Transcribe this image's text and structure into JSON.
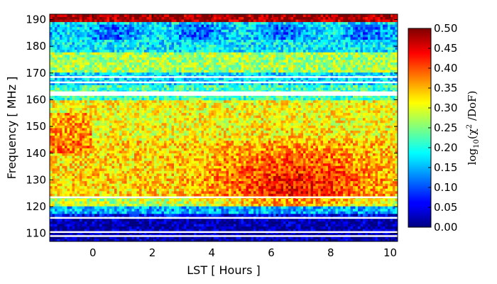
{
  "chart_data": {
    "type": "heatmap",
    "title": "",
    "xlabel": "LST [ Hours ]",
    "ylabel": "Frequency [ MHz ]",
    "xlim": [
      -1.45,
      10.25
    ],
    "ylim": [
      107,
      192
    ],
    "x_ticks": [
      "0",
      "2",
      "4",
      "6",
      "8",
      "10"
    ],
    "x_tick_values": [
      0,
      2,
      4,
      6,
      8,
      10
    ],
    "y_ticks": [
      "110",
      "120",
      "130",
      "140",
      "150",
      "160",
      "170",
      "180",
      "190"
    ],
    "y_tick_values": [
      110,
      120,
      130,
      140,
      150,
      160,
      170,
      180,
      190
    ],
    "colorbar": {
      "label_main": "log",
      "label_sub": "10",
      "label_arg": "(χ",
      "label_sup": "2",
      "label_tail": " /DoF)",
      "range": [
        0.0,
        0.5
      ],
      "ticks": [
        "0.00",
        "0.05",
        "0.10",
        "0.15",
        "0.20",
        "0.25",
        "0.30",
        "0.35",
        "0.40",
        "0.45",
        "0.50"
      ],
      "tick_values": [
        0.0,
        0.05,
        0.1,
        0.15,
        0.2,
        0.25,
        0.3,
        0.35,
        0.4,
        0.45,
        0.5
      ],
      "colormap": "jet"
    },
    "bands": [
      {
        "f_min": 107,
        "f_max": 115.5,
        "value": 0.02
      },
      {
        "f_min": 115.5,
        "f_max": 117.5,
        "value": 0.06
      },
      {
        "f_min": 117.5,
        "f_max": 120,
        "value": 0.15
      },
      {
        "f_min": 120,
        "f_max": 124,
        "value": 0.28
      },
      {
        "f_min": 124,
        "f_max": 145,
        "value": 0.33
      },
      {
        "f_min": 145,
        "f_max": 160,
        "value": 0.31
      },
      {
        "f_min": 160,
        "f_max": 166,
        "value": 0.22
      },
      {
        "f_min": 166,
        "f_max": 170,
        "value": 0.17
      },
      {
        "f_min": 170,
        "f_max": 178,
        "value": 0.27
      },
      {
        "f_min": 178,
        "f_max": 189,
        "value": 0.18
      },
      {
        "f_min": 189,
        "f_max": 192,
        "value": 0.48
      }
    ],
    "flagged_rows_mhz": [
      109,
      110.5,
      115.8,
      123.5,
      161.8,
      162.3,
      162.8,
      166.5,
      168.5
    ],
    "lst_modulation": "higher values between LST 4 and 9 hours, peak near 7 h at 120-135 MHz"
  }
}
